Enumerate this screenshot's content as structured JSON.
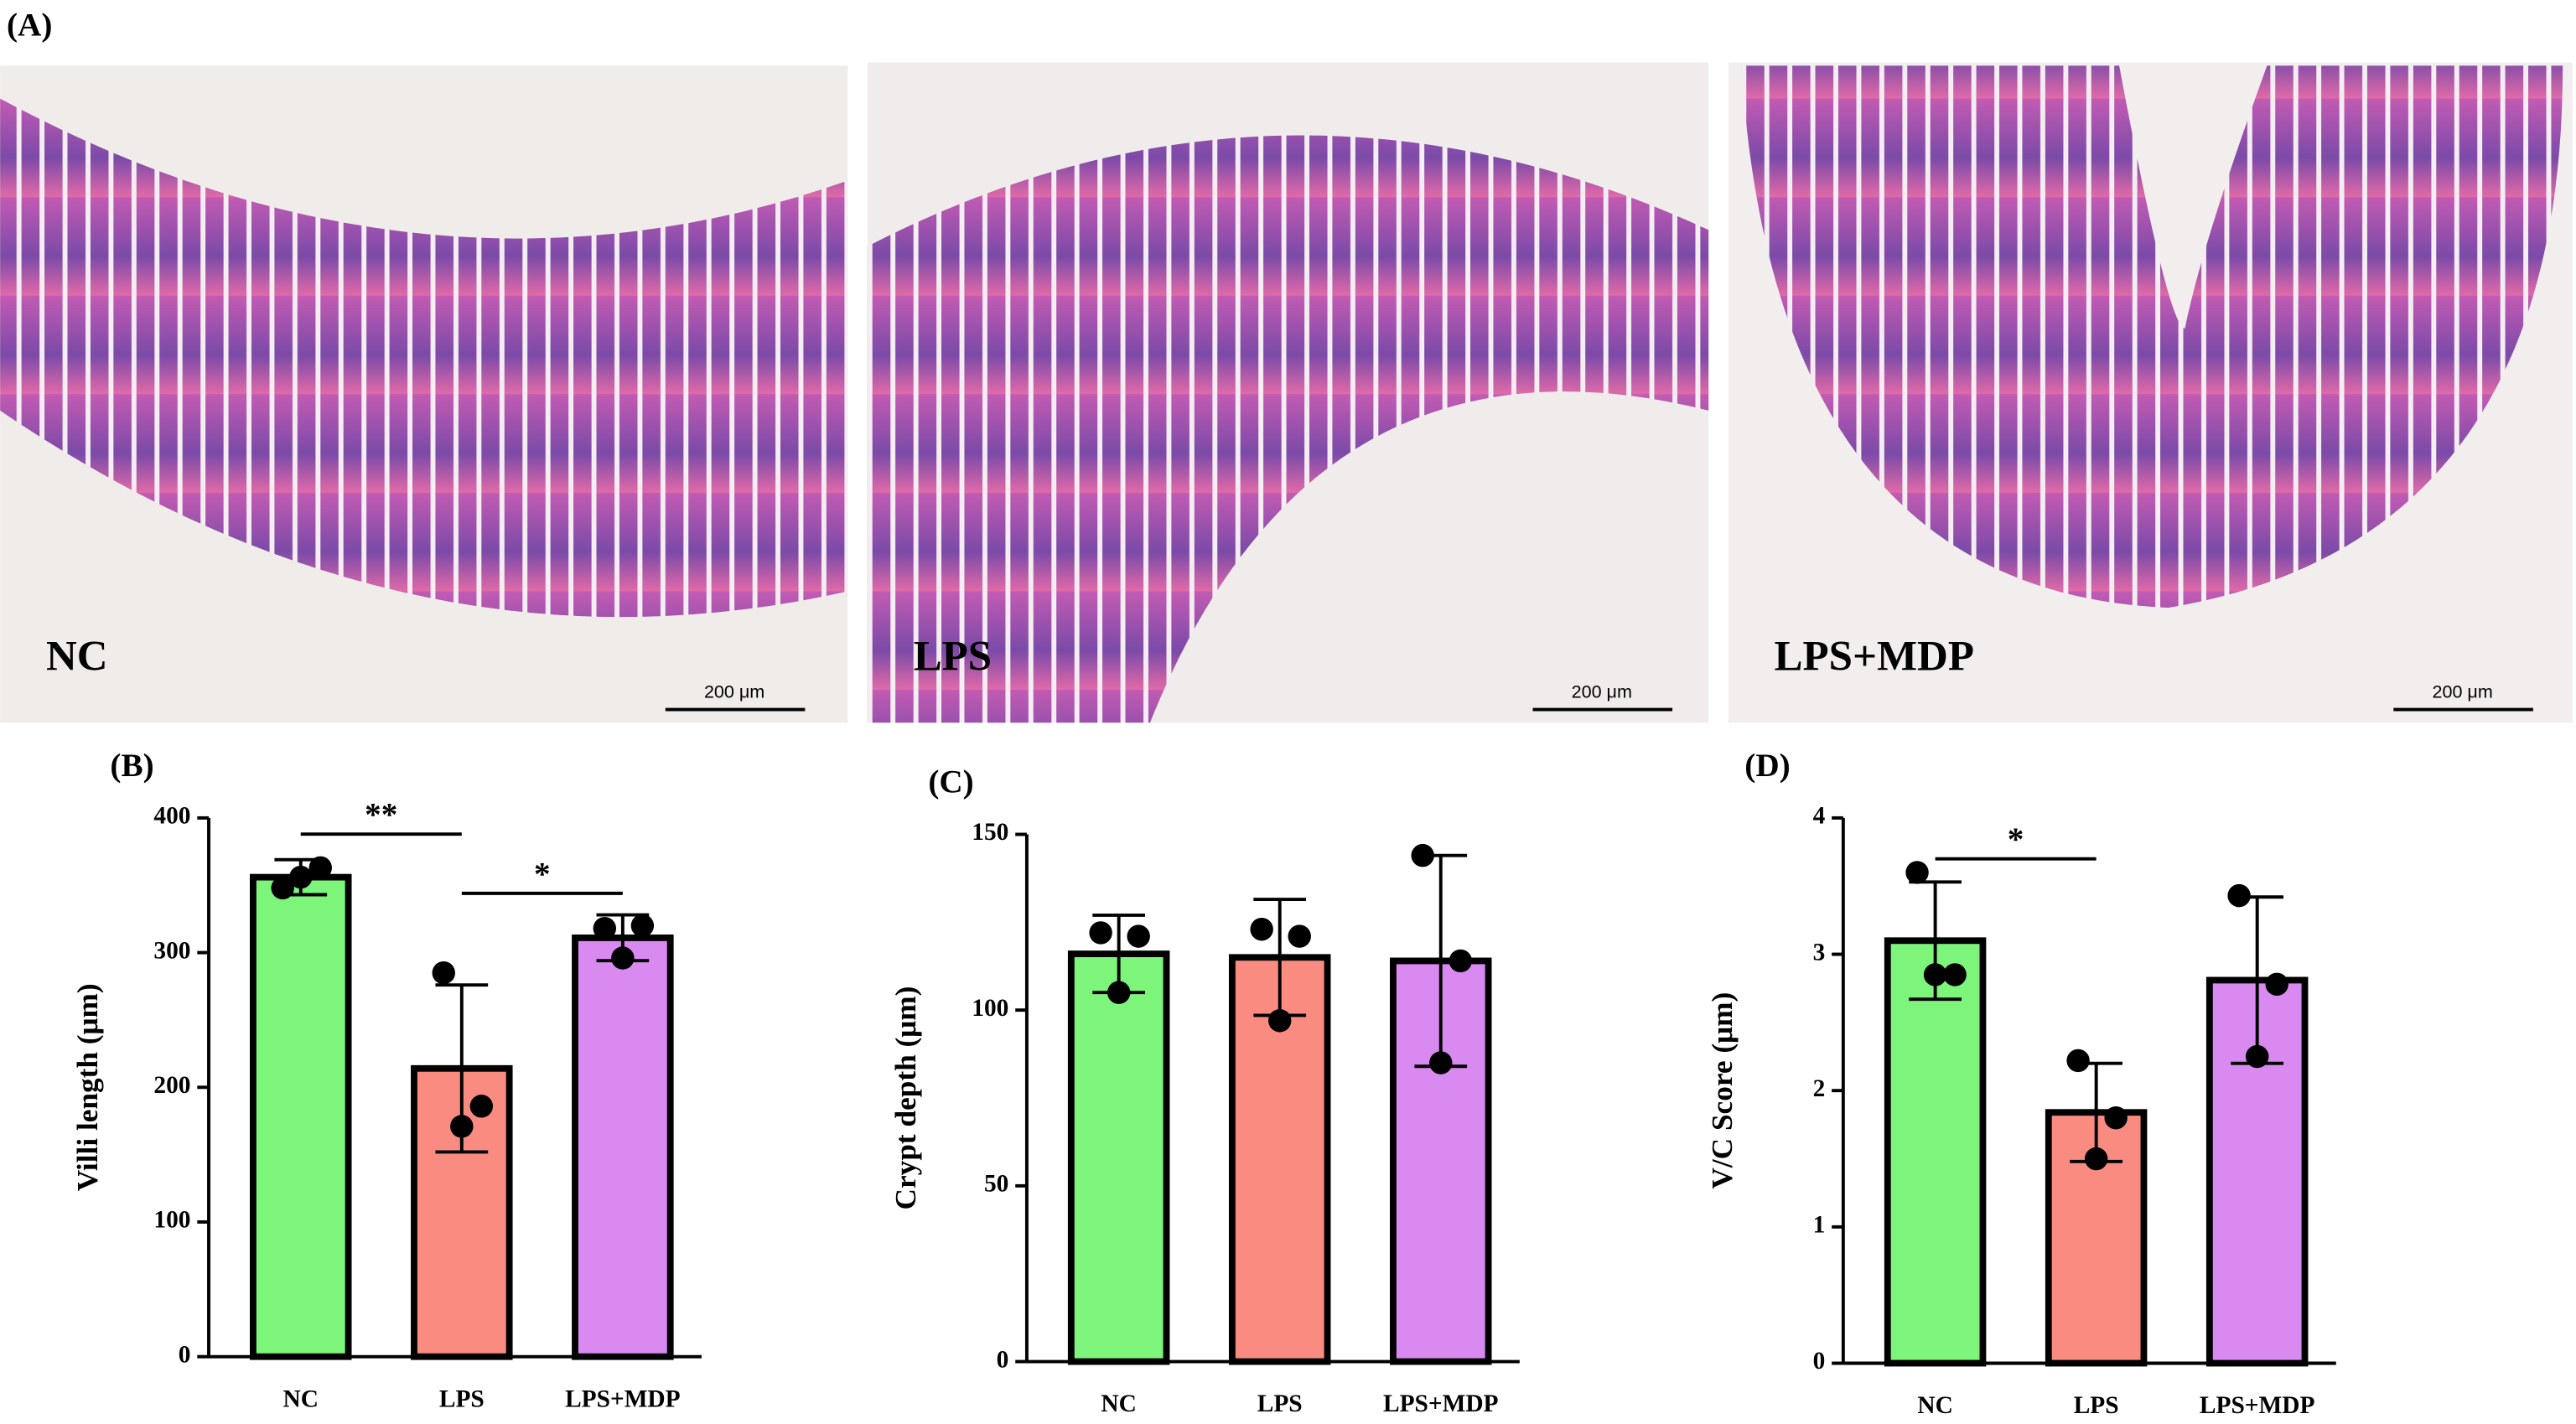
{
  "panel_a": {
    "label": "(A)",
    "images": [
      {
        "label": "NC",
        "scale_bar": "200 μm"
      },
      {
        "label": "LPS",
        "scale_bar": "200 μm"
      },
      {
        "label": "LPS+MDP",
        "scale_bar": "200 μm"
      }
    ]
  },
  "chart_data": [
    {
      "type": "bar",
      "label": "(B)",
      "y_label": "Villi length (μm)",
      "categories": [
        "NC",
        "LPS",
        "LPS+MDP"
      ],
      "colors": [
        "#7df57b",
        "#f98b80",
        "#d98af0"
      ],
      "values": [
        356,
        214,
        311
      ],
      "errors": [
        13,
        62,
        17
      ],
      "points": [
        [
          348,
          363,
          356
        ],
        [
          285,
          186,
          171
        ],
        [
          318,
          320,
          296
        ]
      ],
      "ylim": [
        0,
        400
      ],
      "yticks": [
        0,
        100,
        200,
        300,
        400
      ],
      "annotations": [
        {
          "text": "**",
          "between": [
            "NC",
            "LPS"
          ],
          "y": 388
        },
        {
          "text": "*",
          "between": [
            "LPS",
            "LPS+MDP"
          ],
          "y": 344
        }
      ]
    },
    {
      "type": "bar",
      "label": "(C)",
      "y_label": "Crypt depth (μm)",
      "categories": [
        "NC",
        "LPS",
        "LPS+MDP"
      ],
      "colors": [
        "#7df57b",
        "#f98b80",
        "#d98af0"
      ],
      "values": [
        116,
        115,
        114
      ],
      "errors": [
        11,
        16.5,
        30
      ],
      "points": [
        [
          122,
          121,
          105
        ],
        [
          123,
          121,
          97
        ],
        [
          144,
          114,
          85
        ]
      ],
      "ylim": [
        0,
        150
      ],
      "yticks": [
        0,
        50,
        100,
        150
      ]
    },
    {
      "type": "bar",
      "label": "(D)",
      "y_label": "V/C Score (μm)",
      "categories": [
        "NC",
        "LPS",
        "LPS+MDP"
      ],
      "colors": [
        "#7df57b",
        "#f98b80",
        "#d98af0"
      ],
      "values": [
        3.1,
        1.84,
        2.81
      ],
      "errors": [
        0.43,
        0.36,
        0.61
      ],
      "points": [
        [
          3.6,
          2.85,
          2.85
        ],
        [
          2.22,
          1.8,
          1.5
        ],
        [
          3.43,
          2.78,
          2.25
        ]
      ],
      "ylim": [
        0,
        4
      ],
      "yticks": [
        0,
        1,
        2,
        3,
        4
      ],
      "annotations": [
        {
          "text": "*",
          "between": [
            "NC",
            "LPS"
          ],
          "y": 3.7
        }
      ]
    }
  ]
}
